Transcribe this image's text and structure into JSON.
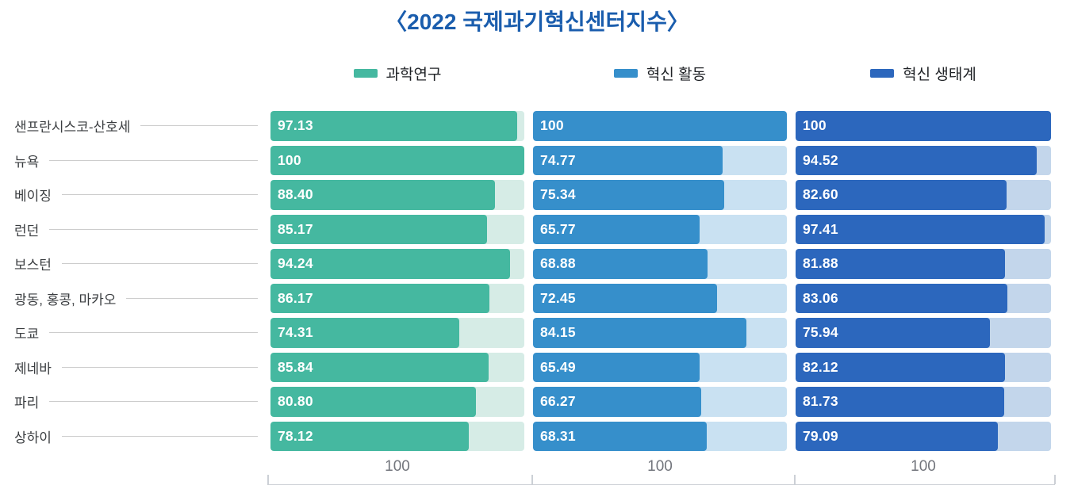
{
  "title": "〈2022 국제과기혁신센터지수〉",
  "chart_data": {
    "type": "bar",
    "orientation": "horizontal",
    "title": "〈2022 국제과기혁신센터지수〉",
    "legend_position": "top",
    "xmax": 100,
    "axis_tick_label": "100",
    "grid": false,
    "categories": [
      "샌프란시스코-산호세",
      "뉴욕",
      "베이징",
      "런던",
      "보스턴",
      "광동, 홍콩, 마카오",
      "도쿄",
      "제네바",
      "파리",
      "상하이"
    ],
    "series": [
      {
        "name": "과학연구",
        "color": "#45b8a0",
        "track_color": "#d6ece6",
        "values": [
          97.13,
          100,
          88.4,
          85.17,
          94.24,
          86.17,
          74.31,
          85.84,
          80.8,
          78.12
        ],
        "labels": [
          "97.13",
          "100",
          "88.40",
          "85.17",
          "94.24",
          "86.17",
          "74.31",
          "85.84",
          "80.80",
          "78.12"
        ]
      },
      {
        "name": "혁신 활동",
        "color": "#368fcb",
        "track_color": "#c9e1f2",
        "values": [
          100,
          74.77,
          75.34,
          65.77,
          68.88,
          72.45,
          84.15,
          65.49,
          66.27,
          68.31
        ],
        "labels": [
          "100",
          "74.77",
          "75.34",
          "65.77",
          "68.88",
          "72.45",
          "84.15",
          "65.49",
          "66.27",
          "68.31"
        ]
      },
      {
        "name": "혁신 생태계",
        "color": "#2c67bd",
        "track_color": "#c3d6eb",
        "values": [
          100,
          94.52,
          82.6,
          97.41,
          81.88,
          83.06,
          75.94,
          82.12,
          81.73,
          79.09
        ],
        "labels": [
          "100",
          "94.52",
          "82.60",
          "97.41",
          "81.88",
          "83.06",
          "75.94",
          "82.12",
          "81.73",
          "79.09"
        ]
      }
    ]
  },
  "colors": {
    "title": "#1a5dad",
    "axis": "#ccd0d6",
    "axis_text": "#73767d",
    "category_text": "#3b3e41",
    "value_text": "#ffffff"
  }
}
